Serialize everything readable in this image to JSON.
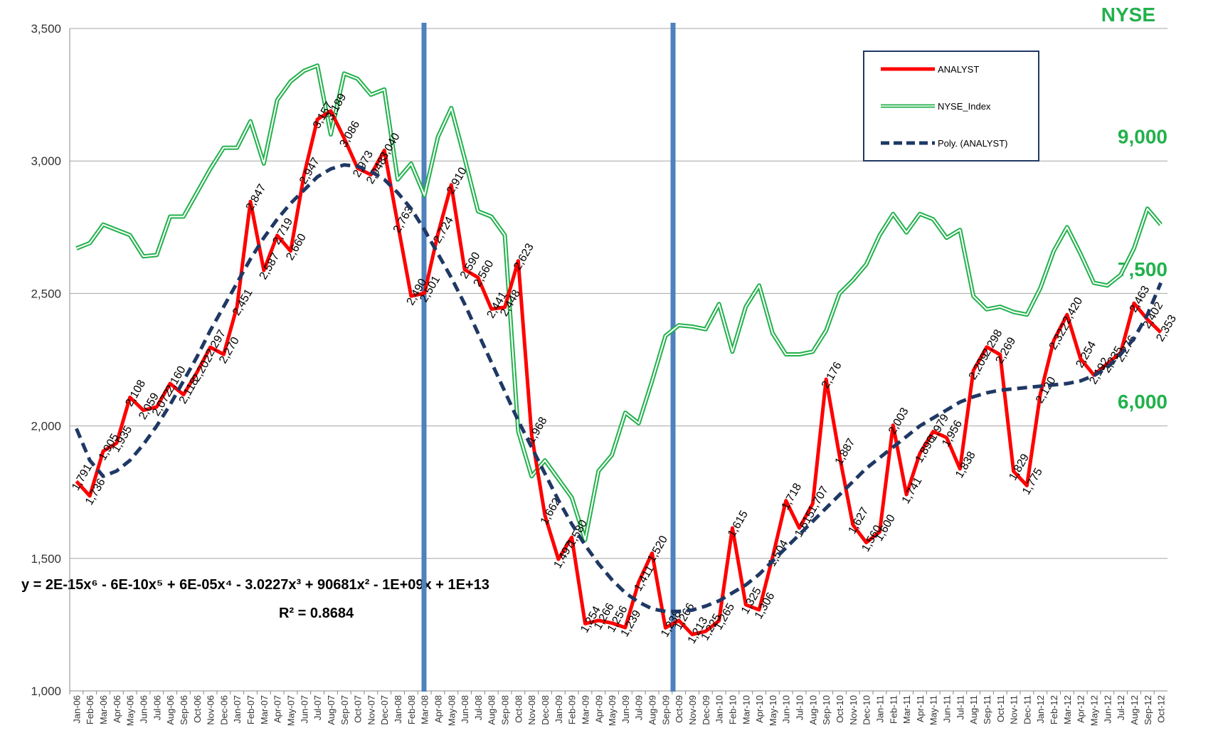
{
  "chart_data": {
    "type": "line",
    "categories": [
      "Jan-06",
      "Feb-06",
      "Mar-06",
      "Apr-06",
      "May-06",
      "Jun-06",
      "Jul-06",
      "Aug-06",
      "Sep-06",
      "Oct-06",
      "Nov-06",
      "Dec-06",
      "Jan-07",
      "Feb-07",
      "Mar-07",
      "Apr-07",
      "May-07",
      "Jun-07",
      "Jul-07",
      "Aug-07",
      "Sep-07",
      "Oct-07",
      "Nov-07",
      "Dec-07",
      "Jan-08",
      "Feb-08",
      "Mar-08",
      "Apr-08",
      "May-08",
      "Jun-08",
      "Jul-08",
      "Aug-08",
      "Sep-08",
      "Oct-08",
      "Nov-08",
      "Dec-08",
      "Jan-09",
      "Feb-09",
      "Mar-09",
      "Apr-09",
      "May-09",
      "Jun-09",
      "Jul-09",
      "Aug-09",
      "Sep-09",
      "Oct-09",
      "Nov-09",
      "Dec-09",
      "Jan-10",
      "Feb-10",
      "Mar-10",
      "Apr-10",
      "May-10",
      "Jun-10",
      "Jul-10",
      "Aug-10",
      "Sep-10",
      "Oct-10",
      "Nov-10",
      "Dec-10",
      "Jan-11",
      "Feb-11",
      "Mar-11",
      "Apr-11",
      "May-11",
      "Jun-11",
      "Jul-11",
      "Aug-11",
      "Sep-11",
      "Oct-11",
      "Nov-11",
      "Dec-11",
      "Jan-12",
      "Feb-12",
      "Mar-12",
      "Apr-12",
      "May-12",
      "Jun-12",
      "Jul-12",
      "Aug-12",
      "Sep-12",
      "Oct-12"
    ],
    "series": [
      {
        "name": "ANALYST",
        "color": "#ff0000",
        "style": "solid",
        "values": [
          1791,
          1736,
          1905,
          1935,
          2108,
          2059,
          2072,
          2160,
          2118,
          2202,
          2297,
          2270,
          2451,
          2847,
          2587,
          2719,
          2660,
          2947,
          3157,
          3189,
          3086,
          2973,
          2948,
          3040,
          2763,
          2490,
          2501,
          2724,
          2910,
          2590,
          2560,
          2441,
          2448,
          2623,
          1968,
          1662,
          1497,
          1580,
          1254,
          1266,
          1256,
          1239,
          1411,
          1520,
          1238,
          1266,
          1213,
          1225,
          1265,
          1615,
          1325,
          1306,
          1504,
          1718,
          1615,
          1707,
          2176,
          1887,
          1627,
          1560,
          1600,
          2003,
          1741,
          1896,
          1979,
          1956,
          1838,
          2209,
          2298,
          2269,
          1829,
          1775,
          2120,
          2322,
          2420,
          2254,
          2192,
          2235,
          2276,
          2463,
          2402,
          2353
        ],
        "value_labels": [
          "1,791",
          "1,736",
          "1,905",
          "1,935",
          "2,108",
          "2,059",
          "2,072",
          "2,160",
          "2,118",
          "2,202",
          "2,297",
          "2,270",
          "2,451",
          "2,847",
          "2,587",
          "2,719",
          "2,660",
          "2,947",
          "3,157",
          "3,189",
          "3,086",
          "2,973",
          "2,948",
          "3,040",
          "2,763",
          "2,490",
          "2,501",
          "2,724",
          "2,910",
          "2,590",
          "2,560",
          "2,441",
          "2,448",
          "2,623",
          "1,968",
          "1,662",
          "1,497",
          "1,580",
          "1,254",
          "1,266",
          "1,256",
          "1,239",
          "1,411",
          "1,520",
          "1,238",
          "1,266",
          "1,213",
          "1,225",
          "1,265",
          "1,615",
          "1,325",
          "1,306",
          "1,504",
          "1,718",
          "1,615",
          "1,707",
          "2,176",
          "1,887",
          "1,627",
          "1,560",
          "1,600",
          "2,003",
          "1,741",
          "1,896",
          "1,979",
          "1,956",
          "1,838",
          "2,209",
          "2,298",
          "2,269",
          "1,829",
          "1,775",
          "2,120",
          "2,322",
          "2,420",
          "2,254",
          "2,192",
          "2,235",
          "2,276",
          "2,463",
          "2,402",
          "2,353"
        ]
      },
      {
        "name": "NYSE_Index",
        "color": "#22b14c",
        "style": "double",
        "axis": "y2",
        "values": [
          7860,
          7920,
          8130,
          8070,
          8010,
          7770,
          7785,
          8220,
          8220,
          8490,
          8760,
          9000,
          9000,
          9300,
          8820,
          9540,
          9750,
          9870,
          9930,
          9150,
          9840,
          9780,
          9600,
          9660,
          8640,
          8820,
          8460,
          9120,
          9450,
          8880,
          8280,
          8220,
          8010,
          5790,
          5280,
          5460,
          5250,
          5040,
          4560,
          5340,
          5520,
          6000,
          5880,
          6360,
          6870,
          6990,
          6975,
          6945,
          7230,
          6690,
          7200,
          7440,
          6900,
          6660,
          6660,
          6690,
          6930,
          7350,
          7500,
          7680,
          8010,
          8250,
          8040,
          8250,
          8190,
          7980,
          8070,
          7320,
          7170,
          7200,
          7140,
          7110,
          7410,
          7830,
          8100,
          7800,
          7470,
          7440,
          7560,
          7860,
          8310,
          8130
        ]
      },
      {
        "name": "Poly. (ANALYST)",
        "color": "#1f3864",
        "style": "dashed",
        "values": [
          1990,
          1870,
          1810,
          1830,
          1870,
          1930,
          2000,
          2080,
          2170,
          2260,
          2360,
          2450,
          2540,
          2630,
          2710,
          2780,
          2840,
          2890,
          2940,
          2970,
          2985,
          2980,
          2960,
          2930,
          2880,
          2820,
          2740,
          2650,
          2560,
          2460,
          2350,
          2240,
          2130,
          2020,
          1920,
          1820,
          1720,
          1630,
          1550,
          1480,
          1420,
          1370,
          1335,
          1310,
          1300,
          1300,
          1305,
          1320,
          1340,
          1370,
          1400,
          1440,
          1490,
          1540,
          1590,
          1640,
          1690,
          1740,
          1790,
          1840,
          1880,
          1920,
          1960,
          2000,
          2030,
          2060,
          2090,
          2110,
          2125,
          2135,
          2140,
          2145,
          2150,
          2155,
          2160,
          2170,
          2190,
          2220,
          2270,
          2330,
          2420,
          2540
        ]
      }
    ],
    "ylim": [
      1000,
      3500
    ],
    "yticks": [
      {
        "value": 1000,
        "label": "1,000"
      },
      {
        "value": 1500,
        "label": "1,500"
      },
      {
        "value": 2000,
        "label": "2,000"
      },
      {
        "value": 2500,
        "label": "2,500"
      },
      {
        "value": 3000,
        "label": "3,000"
      },
      {
        "value": 3500,
        "label": "3,500"
      }
    ],
    "y2_label": "NYSE",
    "y2lim": [
      2850,
      10350
    ],
    "y2ticks": [
      {
        "value": 6000,
        "label": "6,000"
      },
      {
        "value": 7500,
        "label": "7,500"
      },
      {
        "value": 9000,
        "label": "9,000"
      }
    ],
    "grid": true,
    "legend": "upper-right",
    "equation": "y = 2E-15x⁶ - 6E-10x⁵ + 6E-05x⁴ - 3.0227x³ + 90681x² - 1E+09x + 1E+13",
    "r_squared_label": "R² = 0.8684"
  }
}
